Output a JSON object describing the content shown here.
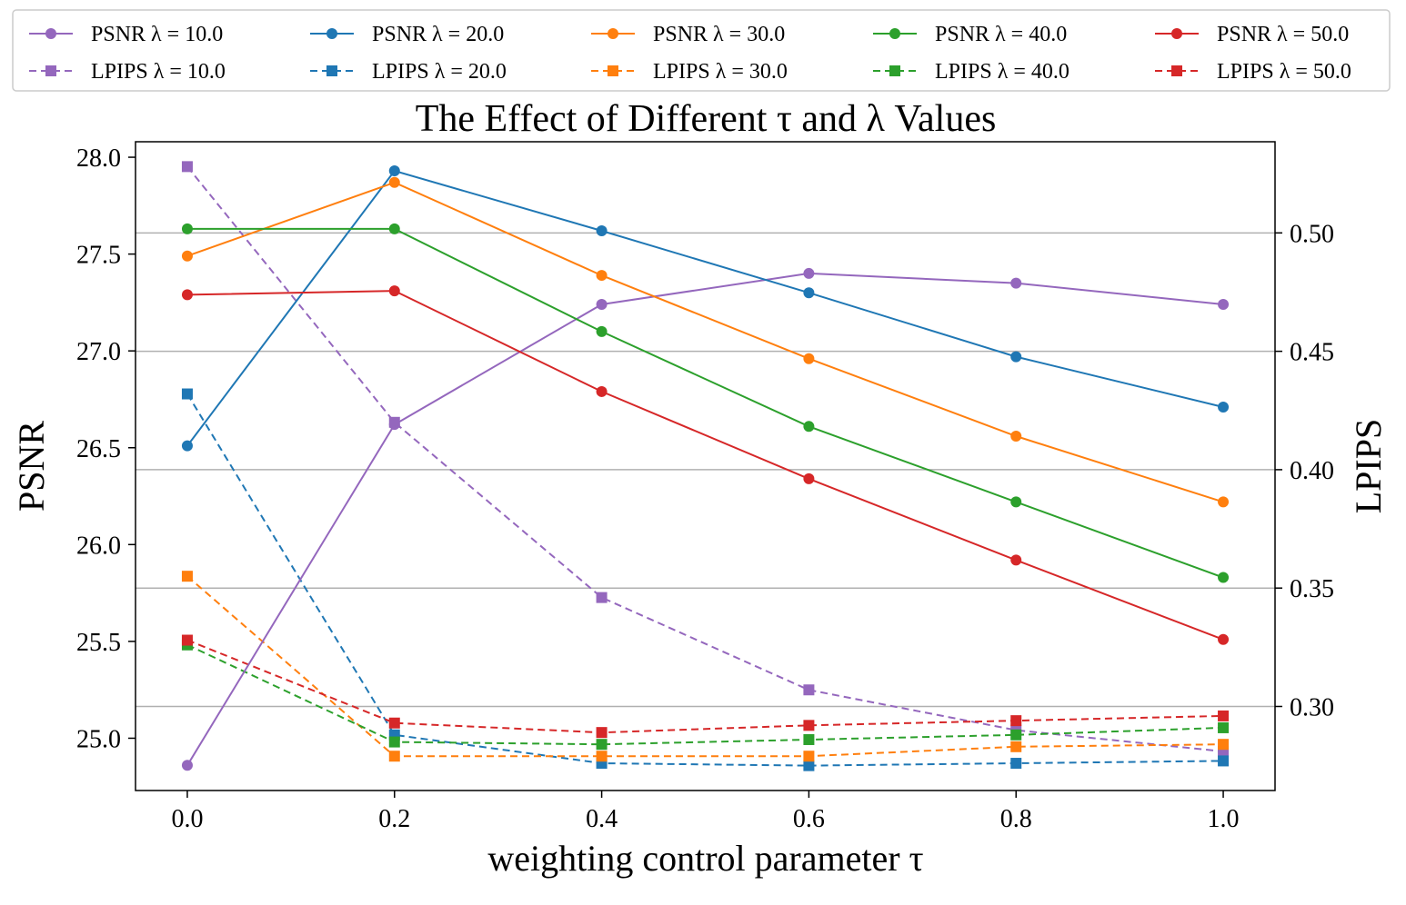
{
  "chart_data": {
    "type": "line",
    "title": "The Effect of Different τ and λ Values",
    "xlabel": "weighting control parameter τ",
    "ylabel_left": "PSNR",
    "ylabel_right": "LPIPS",
    "x": [
      0.0,
      0.2,
      0.4,
      0.6,
      0.8,
      1.0
    ],
    "x_tick_labels": [
      "0.0",
      "0.2",
      "0.4",
      "0.6",
      "0.8",
      "1.0"
    ],
    "xlim": [
      -0.05,
      1.05
    ],
    "ylim_left": [
      24.73,
      28.08
    ],
    "ylim_right": [
      0.2645,
      0.5385
    ],
    "y_left_ticks": [
      "25.0",
      "25.5",
      "26.0",
      "26.5",
      "27.0",
      "27.5",
      "28.0"
    ],
    "y_left_tick_values": [
      25.0,
      25.5,
      26.0,
      26.5,
      27.0,
      27.5,
      28.0
    ],
    "y_right_ticks": [
      "0.30",
      "0.35",
      "0.40",
      "0.45",
      "0.50"
    ],
    "y_right_tick_values": [
      0.3,
      0.35,
      0.4,
      0.45,
      0.5
    ],
    "grid": "horizontal lines at right-axis ticks",
    "legend_position": "top, above plot, 5 columns",
    "series": [
      {
        "name": "PSNR λ = 10.0",
        "axis": "left",
        "style": "solid",
        "marker": "circle",
        "color": "#9467bd",
        "values": [
          24.86,
          26.62,
          27.24,
          27.4,
          27.35,
          27.24
        ]
      },
      {
        "name": "PSNR λ = 20.0",
        "axis": "left",
        "style": "solid",
        "marker": "circle",
        "color": "#1f77b4",
        "values": [
          26.51,
          27.93,
          27.62,
          27.3,
          26.97,
          26.71
        ]
      },
      {
        "name": "PSNR λ = 30.0",
        "axis": "left",
        "style": "solid",
        "marker": "circle",
        "color": "#ff7f0e",
        "values": [
          27.49,
          27.87,
          27.39,
          26.96,
          26.56,
          26.22
        ]
      },
      {
        "name": "PSNR λ = 40.0",
        "axis": "left",
        "style": "solid",
        "marker": "circle",
        "color": "#2ca02c",
        "values": [
          27.63,
          27.63,
          27.1,
          26.61,
          26.22,
          25.83
        ]
      },
      {
        "name": "PSNR λ = 50.0",
        "axis": "left",
        "style": "solid",
        "marker": "circle",
        "color": "#d62728",
        "values": [
          27.29,
          27.31,
          26.79,
          26.34,
          25.92,
          25.51
        ]
      },
      {
        "name": "LPIPS λ = 10.0",
        "axis": "right",
        "style": "dashed",
        "marker": "square",
        "color": "#9467bd",
        "values": [
          0.528,
          0.42,
          0.346,
          0.307,
          0.29,
          0.281
        ]
      },
      {
        "name": "LPIPS λ = 20.0",
        "axis": "right",
        "style": "dashed",
        "marker": "square",
        "color": "#1f77b4",
        "values": [
          0.432,
          0.288,
          0.276,
          0.275,
          0.276,
          0.277
        ]
      },
      {
        "name": "LPIPS λ = 30.0",
        "axis": "right",
        "style": "dashed",
        "marker": "square",
        "color": "#ff7f0e",
        "values": [
          0.355,
          0.279,
          0.279,
          0.279,
          0.283,
          0.284
        ]
      },
      {
        "name": "LPIPS λ = 40.0",
        "axis": "right",
        "style": "dashed",
        "marker": "square",
        "color": "#2ca02c",
        "values": [
          0.326,
          0.285,
          0.284,
          0.286,
          0.288,
          0.291
        ]
      },
      {
        "name": "LPIPS λ = 50.0",
        "axis": "right",
        "style": "dashed",
        "marker": "square",
        "color": "#d62728",
        "values": [
          0.328,
          0.293,
          0.289,
          0.292,
          0.294,
          0.296
        ]
      }
    ]
  }
}
